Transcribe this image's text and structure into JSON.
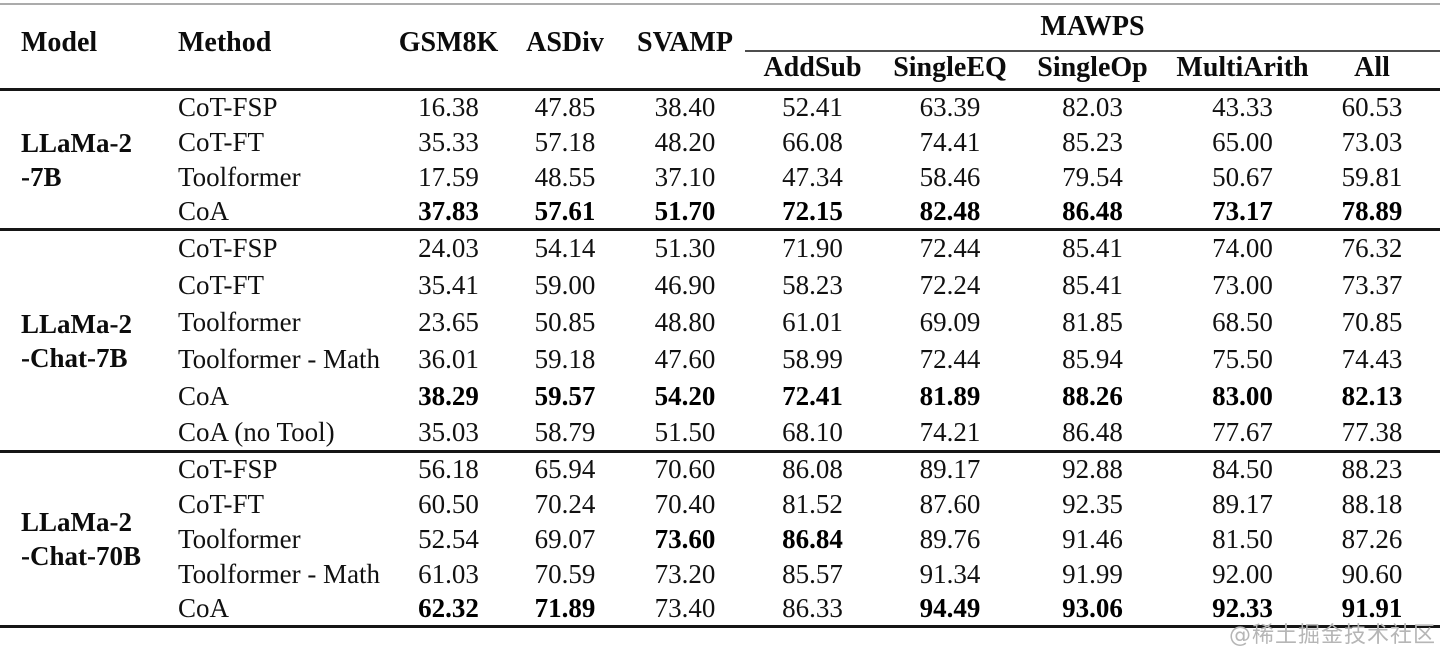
{
  "watermark": "@稀土掘金技术社区",
  "colors": {
    "rule": "#161616",
    "watermark": "#b6b6b6"
  },
  "table": {
    "columns": {
      "model": "Model",
      "method": "Method",
      "gsm8k": "GSM8K",
      "asdiv": "ASDiv",
      "svamp": "SVAMP",
      "mawps": "MAWPS",
      "mawps_sub": [
        "AddSub",
        "SingleEQ",
        "SingleOp",
        "MultiArith",
        "All"
      ]
    },
    "groups": [
      {
        "model_lines": [
          "LLaMa-2",
          "-7B"
        ],
        "rows": [
          {
            "method": "CoT-FSP",
            "values": [
              "16.38",
              "47.85",
              "38.40",
              "52.41",
              "63.39",
              "82.03",
              "43.33",
              "60.53"
            ],
            "bold": [
              0,
              0,
              0,
              0,
              0,
              0,
              0,
              0
            ]
          },
          {
            "method": "CoT-FT",
            "values": [
              "35.33",
              "57.18",
              "48.20",
              "66.08",
              "74.41",
              "85.23",
              "65.00",
              "73.03"
            ],
            "bold": [
              0,
              0,
              0,
              0,
              0,
              0,
              0,
              0
            ]
          },
          {
            "method": "Toolformer",
            "values": [
              "17.59",
              "48.55",
              "37.10",
              "47.34",
              "58.46",
              "79.54",
              "50.67",
              "59.81"
            ],
            "bold": [
              0,
              0,
              0,
              0,
              0,
              0,
              0,
              0
            ]
          },
          {
            "method": "CoA",
            "values": [
              "37.83",
              "57.61",
              "51.70",
              "72.15",
              "82.48",
              "86.48",
              "73.17",
              "78.89"
            ],
            "bold": [
              1,
              1,
              1,
              1,
              1,
              1,
              1,
              1
            ]
          }
        ]
      },
      {
        "model_lines": [
          "LLaMa-2",
          "-Chat-7B"
        ],
        "rows": [
          {
            "method": "CoT-FSP",
            "values": [
              "24.03",
              "54.14",
              "51.30",
              "71.90",
              "72.44",
              "85.41",
              "74.00",
              "76.32"
            ],
            "bold": [
              0,
              0,
              0,
              0,
              0,
              0,
              0,
              0
            ]
          },
          {
            "method": "CoT-FT",
            "values": [
              "35.41",
              "59.00",
              "46.90",
              "58.23",
              "72.24",
              "85.41",
              "73.00",
              "73.37"
            ],
            "bold": [
              0,
              0,
              0,
              0,
              0,
              0,
              0,
              0
            ]
          },
          {
            "method": "Toolformer",
            "values": [
              "23.65",
              "50.85",
              "48.80",
              "61.01",
              "69.09",
              "81.85",
              "68.50",
              "70.85"
            ],
            "bold": [
              0,
              0,
              0,
              0,
              0,
              0,
              0,
              0
            ]
          },
          {
            "method": "Toolformer - Math",
            "values": [
              "36.01",
              "59.18",
              "47.60",
              "58.99",
              "72.44",
              "85.94",
              "75.50",
              "74.43"
            ],
            "bold": [
              0,
              0,
              0,
              0,
              0,
              0,
              0,
              0
            ]
          },
          {
            "method": "CoA",
            "values": [
              "38.29",
              "59.57",
              "54.20",
              "72.41",
              "81.89",
              "88.26",
              "83.00",
              "82.13"
            ],
            "bold": [
              1,
              1,
              1,
              1,
              1,
              1,
              1,
              1
            ]
          },
          {
            "method": "CoA (no Tool)",
            "values": [
              "35.03",
              "58.79",
              "51.50",
              "68.10",
              "74.21",
              "86.48",
              "77.67",
              "77.38"
            ],
            "bold": [
              0,
              0,
              0,
              0,
              0,
              0,
              0,
              0
            ]
          }
        ]
      },
      {
        "model_lines": [
          "LLaMa-2",
          "-Chat-70B"
        ],
        "rows": [
          {
            "method": "CoT-FSP",
            "values": [
              "56.18",
              "65.94",
              "70.60",
              "86.08",
              "89.17",
              "92.88",
              "84.50",
              "88.23"
            ],
            "bold": [
              0,
              0,
              0,
              0,
              0,
              0,
              0,
              0
            ]
          },
          {
            "method": "CoT-FT",
            "values": [
              "60.50",
              "70.24",
              "70.40",
              "81.52",
              "87.60",
              "92.35",
              "89.17",
              "88.18"
            ],
            "bold": [
              0,
              0,
              0,
              0,
              0,
              0,
              0,
              0
            ]
          },
          {
            "method": "Toolformer",
            "values": [
              "52.54",
              "69.07",
              "73.60",
              "86.84",
              "89.76",
              "91.46",
              "81.50",
              "87.26"
            ],
            "bold": [
              0,
              0,
              1,
              1,
              0,
              0,
              0,
              0
            ]
          },
          {
            "method": "Toolformer - Math",
            "values": [
              "61.03",
              "70.59",
              "73.20",
              "85.57",
              "91.34",
              "91.99",
              "92.00",
              "90.60"
            ],
            "bold": [
              0,
              0,
              0,
              0,
              0,
              0,
              0,
              0
            ]
          },
          {
            "method": "CoA",
            "values": [
              "62.32",
              "71.89",
              "73.40",
              "86.33",
              "94.49",
              "93.06",
              "92.33",
              "91.91"
            ],
            "bold": [
              1,
              1,
              0,
              0,
              1,
              1,
              1,
              1
            ]
          }
        ]
      }
    ]
  }
}
